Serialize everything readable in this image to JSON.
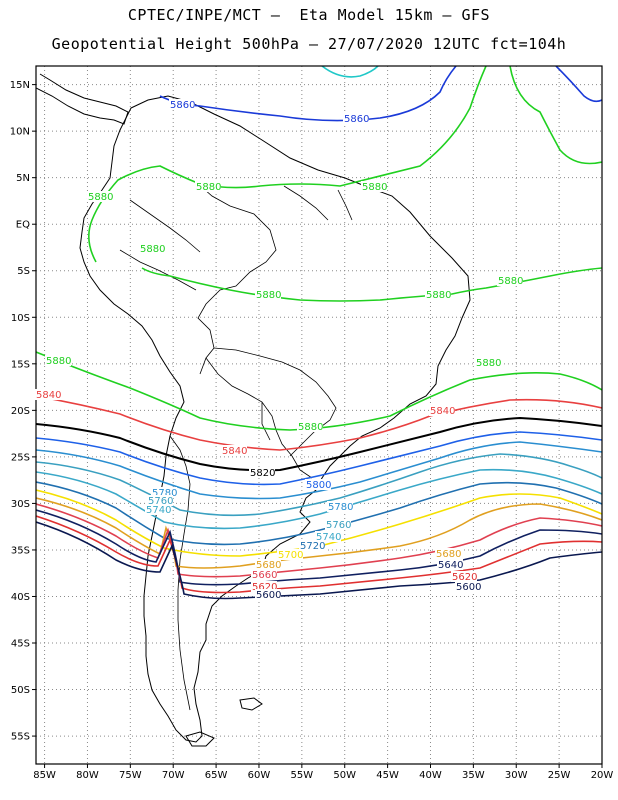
{
  "header": {
    "line1": "CPTEC/INPE/MCT –  Eta Model 15km – GFS",
    "line2": "Geopotential Height 500hPa – 27/07/2020 12UTC fct=104h"
  },
  "map": {
    "lon_range": [
      -86,
      -20
    ],
    "lat_range": [
      17,
      -58
    ],
    "lat_ticks": [
      "15N",
      "10N",
      "5N",
      "EQ",
      "5S",
      "10S",
      "15S",
      "20S",
      "25S",
      "30S",
      "35S",
      "40S",
      "45S",
      "50S",
      "55S"
    ],
    "lon_ticks": [
      "85W",
      "80W",
      "75W",
      "70W",
      "65W",
      "60W",
      "55W",
      "50W",
      "45W",
      "40W",
      "35W",
      "30W",
      "25W",
      "20W"
    ],
    "grid": "dotted"
  },
  "colors": {
    "5880": "#20d020",
    "5860": "#1a3ad8",
    "5840": "#e84040",
    "5820": "#000000",
    "5800": "#1e60e8",
    "5780": "#2a8ed0",
    "5760": "#3aa0c0",
    "5740": "#3aa8c8",
    "5720": "#2070b0",
    "5700": "#f5e000",
    "5680": "#e0a020",
    "5660": "#e04050",
    "5640": "#102060",
    "5620": "#e03030",
    "5600": "#0a1850",
    "5900": "#20c8c8"
  },
  "contours": [
    {
      "level": "5880",
      "labels": [
        "5880",
        "5880",
        "5880",
        "5880",
        "5880",
        "5880",
        "5880",
        "5880",
        "5880",
        "5880"
      ]
    },
    {
      "level": "5860",
      "labels": [
        "5860",
        "5860"
      ]
    },
    {
      "level": "5840",
      "labels": [
        "5840",
        "5840",
        "5840"
      ]
    },
    {
      "level": "5820",
      "labels": [
        "5820"
      ]
    },
    {
      "level": "5800",
      "labels": [
        "5800"
      ]
    },
    {
      "level": "5780",
      "labels": [
        "5780",
        "5780"
      ]
    },
    {
      "level": "5760",
      "labels": [
        "5760",
        "5760"
      ]
    },
    {
      "level": "5740",
      "labels": [
        "5740",
        "5740"
      ]
    },
    {
      "level": "5720",
      "labels": [
        "5720"
      ]
    },
    {
      "level": "5700",
      "labels": [
        "5700"
      ]
    },
    {
      "level": "5680",
      "labels": [
        "5680",
        "5680"
      ]
    },
    {
      "level": "5660",
      "labels": [
        "5660"
      ]
    },
    {
      "level": "5640",
      "labels": [
        "5640"
      ]
    },
    {
      "level": "5620",
      "labels": [
        "5620",
        "5620"
      ]
    },
    {
      "level": "5600",
      "labels": [
        "5600",
        "5600"
      ]
    }
  ]
}
